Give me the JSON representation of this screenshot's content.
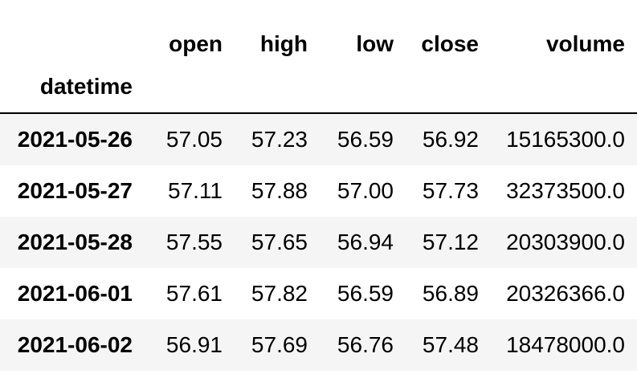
{
  "table": {
    "columns": [
      "open",
      "high",
      "low",
      "close",
      "volume"
    ],
    "index_name": "datetime",
    "rows": [
      {
        "index": "2021-05-26",
        "values": [
          "57.05",
          "57.23",
          "56.59",
          "56.92",
          "15165300.0"
        ]
      },
      {
        "index": "2021-05-27",
        "values": [
          "57.11",
          "57.88",
          "57.00",
          "57.73",
          "32373500.0"
        ]
      },
      {
        "index": "2021-05-28",
        "values": [
          "57.55",
          "57.65",
          "56.94",
          "57.12",
          "20303900.0"
        ]
      },
      {
        "index": "2021-06-01",
        "values": [
          "57.61",
          "57.82",
          "56.59",
          "56.89",
          "20326366.0"
        ]
      },
      {
        "index": "2021-06-02",
        "values": [
          "56.91",
          "57.69",
          "56.76",
          "57.48",
          "18478000.0"
        ]
      }
    ]
  }
}
